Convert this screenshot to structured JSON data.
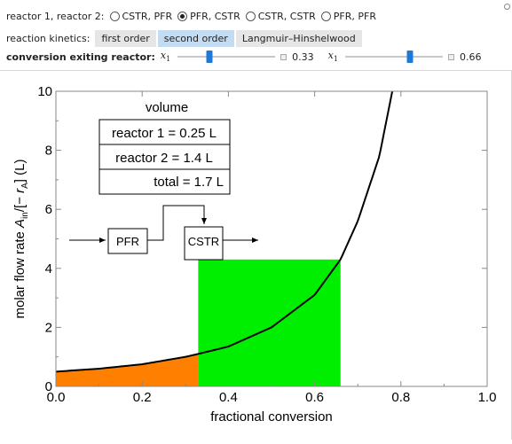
{
  "controls": {
    "reactor_config": {
      "label": "reactor 1, reactor 2:",
      "options": [
        "CSTR, PFR",
        "PFR, CSTR",
        "CSTR, CSTR",
        "PFR, PFR"
      ],
      "selected_index": 1
    },
    "kinetics": {
      "label": "reaction kinetics:",
      "options": [
        "first order",
        "second order",
        "Langmuir–Hinshelwood"
      ],
      "selected_index": 1
    },
    "conversion": {
      "label": "conversion exiting reactor:",
      "x1_label": "x",
      "x1_sub": "1",
      "x1_value": 0.33,
      "x1_text": "0.33",
      "x2_label": "x",
      "x2_sub": "1",
      "x2_value": 0.66,
      "x2_text": "0.66"
    }
  },
  "plot": {
    "volume_title": "volume",
    "volume_rows": [
      "reactor 1 = 0.25 L",
      "reactor 2 = 1.4 L",
      "total = 1.7 L"
    ],
    "diagram_labels": {
      "reactor1": "PFR",
      "reactor2": "CSTR"
    },
    "xlabel": "fractional conversion",
    "ylabel_prefix": "molar flow rate ",
    "ylabel_A": "A",
    "ylabel_sub": "in",
    "ylabel_mid": "/[− ",
    "ylabel_r": "r",
    "ylabel_rsub": "A",
    "ylabel_suffix": "] (L)",
    "colors": {
      "reactor1_fill": "#ff7f00",
      "reactor2_fill": "#00ee00",
      "curve": "#000000"
    }
  },
  "chart_data": {
    "type": "area",
    "xlim": [
      0.0,
      1.0
    ],
    "ylim": [
      0,
      10
    ],
    "xticks": [
      "0.0",
      "0.2",
      "0.4",
      "0.6",
      "0.8",
      "1.0"
    ],
    "yticks": [
      "0",
      "2",
      "4",
      "6",
      "8",
      "10"
    ],
    "curve": {
      "x": [
        0.0,
        0.1,
        0.2,
        0.3,
        0.33,
        0.4,
        0.5,
        0.6,
        0.66,
        0.7,
        0.75,
        0.78
      ],
      "y": [
        0.5,
        0.6,
        0.75,
        1.0,
        1.1,
        1.35,
        2.0,
        3.1,
        4.3,
        5.6,
        7.8,
        10.0
      ]
    },
    "reactor1_area": {
      "x_from": 0.0,
      "x_to": 0.33
    },
    "reactor2_rect": {
      "x_from": 0.33,
      "x_to": 0.66,
      "height": 4.3
    },
    "grid": false
  }
}
